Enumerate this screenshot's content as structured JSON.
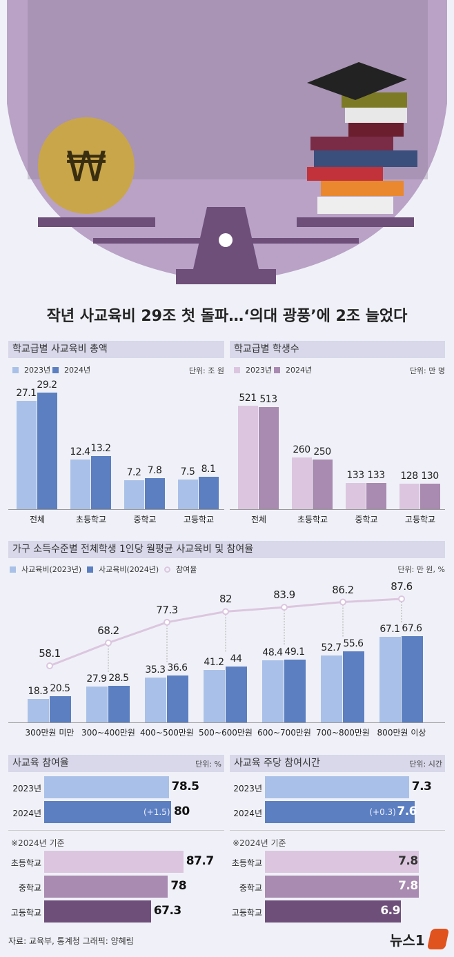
{
  "title": "작년 사교육비 29조 첫 돌파…‘의대 광풍’에 2조 늘었다",
  "colors": {
    "y2023": "#a9c1e8",
    "y2024": "#5b7fc0",
    "s2023": "#dcc6df",
    "s2024": "#a98ab0",
    "line": "#dcc6df",
    "elem": "#dcc6df",
    "mid": "#a98ab0",
    "high": "#6e4f79"
  },
  "chart_data": [
    {
      "type": "bar",
      "title": "학교급별 사교육비 총액",
      "unit": "단위: 조 원",
      "legend": [
        "2023년",
        "2024년"
      ],
      "categories": [
        "전체",
        "초등학교",
        "중학교",
        "고등학교"
      ],
      "series": [
        {
          "name": "2023년",
          "values": [
            27.1,
            12.4,
            7.2,
            7.5
          ]
        },
        {
          "name": "2024년",
          "values": [
            29.2,
            13.2,
            7.8,
            8.1
          ]
        }
      ]
    },
    {
      "type": "bar",
      "title": "학교급별 학생수",
      "unit": "단위: 만 명",
      "legend": [
        "2023년",
        "2024년"
      ],
      "categories": [
        "전체",
        "초등학교",
        "중학교",
        "고등학교"
      ],
      "series": [
        {
          "name": "2023년",
          "values": [
            521,
            260,
            133,
            128
          ]
        },
        {
          "name": "2024년",
          "values": [
            513,
            250,
            133,
            130
          ]
        }
      ]
    },
    {
      "type": "bar",
      "title": "가구 소득수준별 전체학생 1인당 월평균 사교육비 및 참여율",
      "unit": "단위: 만 원, %",
      "legend": [
        "사교육비(2023년)",
        "사교육비(2024년)",
        "참여율"
      ],
      "categories": [
        "300만원 미만",
        "300~400만원",
        "400~500만원",
        "500~600만원",
        "600~700만원",
        "700~800만원",
        "800만원 이상"
      ],
      "series": [
        {
          "name": "사교육비(2023년)",
          "values": [
            18.3,
            27.9,
            35.3,
            41.2,
            48.4,
            52.7,
            67.1
          ]
        },
        {
          "name": "사교육비(2024년)",
          "values": [
            20.5,
            28.5,
            36.6,
            44.0,
            49.1,
            55.6,
            67.6
          ]
        },
        {
          "name": "참여율",
          "type": "line",
          "values": [
            58.1,
            68.2,
            77.3,
            82.0,
            83.9,
            86.2,
            87.6
          ]
        }
      ]
    },
    {
      "type": "bar",
      "orientation": "horizontal",
      "title": "사교육 참여율",
      "unit": "단위: %",
      "categories": [
        "2023년",
        "2024년"
      ],
      "values": [
        78.5,
        80.0
      ],
      "diff": "(+1.5)",
      "note": "※2024년 기준",
      "sub": {
        "categories": [
          "초등학교",
          "중학교",
          "고등학교"
        ],
        "values": [
          87.7,
          78.0,
          67.3
        ]
      }
    },
    {
      "type": "bar",
      "orientation": "horizontal",
      "title": "사교육 주당 참여시간",
      "unit": "단위: 시간",
      "categories": [
        "2023년",
        "2024년"
      ],
      "values": [
        7.3,
        7.6
      ],
      "diff": "(+0.3)",
      "note": "※2024년 기준",
      "sub": {
        "categories": [
          "초등학교",
          "중학교",
          "고등학교"
        ],
        "values": [
          7.8,
          7.8,
          6.9
        ]
      }
    }
  ],
  "footer": {
    "source": "자료: 교육부, 통계청  그래픽: 양혜림",
    "logo": "뉴스1"
  }
}
